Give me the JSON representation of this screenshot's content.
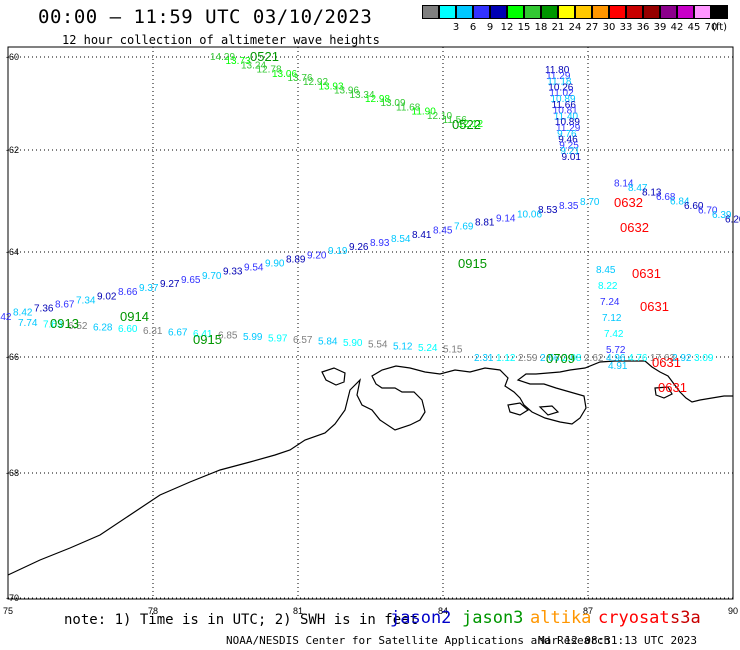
{
  "header": {
    "title": "00:00 – 11:59 UTC 03/10/2023",
    "subtitle": "12 hour collection of altimeter wave heights"
  },
  "color_scale": {
    "unit": "(ft)",
    "bins": [
      {
        "label": "",
        "color": "#7f7f7f"
      },
      {
        "label": "3",
        "color": "#00ffff"
      },
      {
        "label": "6",
        "color": "#00c8ff"
      },
      {
        "label": "9",
        "color": "#3232ff"
      },
      {
        "label": "12",
        "color": "#0000b4"
      },
      {
        "label": "15",
        "color": "#00ff00"
      },
      {
        "label": "18",
        "color": "#32c832"
      },
      {
        "label": "21",
        "color": "#009600"
      },
      {
        "label": "24",
        "color": "#ffff00"
      },
      {
        "label": "27",
        "color": "#ffc800"
      },
      {
        "label": "30",
        "color": "#ff9600"
      },
      {
        "label": "33",
        "color": "#ff0000"
      },
      {
        "label": "36",
        "color": "#c80000"
      },
      {
        "label": "39",
        "color": "#960000"
      },
      {
        "label": "42",
        "color": "#8c008c"
      },
      {
        "label": "45",
        "color": "#c800c8"
      },
      {
        "label": "70",
        "color": "#ff96ff"
      },
      {
        "label": "",
        "color": "#000000"
      }
    ]
  },
  "map": {
    "lon_ticks": [
      "75",
      "78",
      "81",
      "84",
      "87",
      "90"
    ],
    "lat_ticks": [
      "-60",
      "-62",
      "-64",
      "-66",
      "-68",
      "-70"
    ],
    "time_labels": [
      {
        "text": "0521",
        "color": "#009600"
      },
      {
        "text": "0522",
        "color": "#009600"
      },
      {
        "text": "0915",
        "color": "#009600"
      },
      {
        "text": "0914",
        "color": "#009600"
      },
      {
        "text": "0913",
        "color": "#009600"
      },
      {
        "text": "0915",
        "color": "#009600"
      },
      {
        "text": "0709",
        "color": "#009600"
      },
      {
        "text": "0632",
        "color": "#ff0000"
      },
      {
        "text": "0632",
        "color": "#ff0000"
      },
      {
        "text": "0631",
        "color": "#ff0000"
      },
      {
        "text": "0631",
        "color": "#ff0000"
      },
      {
        "text": "0631",
        "color": "#ff0000"
      },
      {
        "text": "0631",
        "color": "#ff0000"
      }
    ],
    "wave_values": {
      "track_a": [
        "14.29",
        "13.73",
        "13.24",
        "12.78",
        "13.06",
        "13.76",
        "12.92",
        "13.93",
        "13.96",
        "13.34",
        "12.98",
        "13.09",
        "11.68",
        "11.90",
        "12.10",
        "11.56",
        "12.12"
      ],
      "track_b": [
        "11.80",
        "11.29",
        "11.18",
        "10.26",
        "11.02",
        "10.89",
        "11.66",
        "10.81",
        "11.40",
        "10.89",
        "11.29",
        "9.76",
        "9.46",
        "9.25",
        "9.21",
        "9.01",
        "8.14",
        "8.47",
        "8.13",
        "6.68",
        "6.84",
        "6.60",
        "6.70",
        "6.39",
        "6.20"
      ],
      "track_c": [
        "8.70",
        "8.35",
        "8.53",
        "10.06",
        "9.14",
        "8.81",
        "7.69",
        "8.45",
        "8.41",
        "8.54",
        "8.93",
        "9.26",
        "9.19",
        "9.20",
        "8.89",
        "9.90",
        "9.54",
        "9.33",
        "9.70",
        "9.65",
        "9.27",
        "9.37",
        "8.66",
        "9.02",
        "7.34",
        "8.67",
        "7.36",
        "8.42",
        "6.42"
      ],
      "track_d": [
        "7.74",
        "7.63",
        "6.52",
        "6.28",
        "6.60",
        "6.31",
        "6.67",
        "6.41",
        "6.85",
        "5.99",
        "5.97",
        "6.57",
        "5.84",
        "5.90",
        "5.54",
        "5.12",
        "5.24",
        "5.15",
        "2.31",
        "1.12",
        "2.59",
        "2.66",
        "2.08",
        "2.62",
        "4.96",
        "4.76",
        "17.63",
        "2.92",
        "3.09"
      ],
      "track_e": [
        "8.45",
        "8.22",
        "7.24",
        "7.12",
        "7.42",
        "5.72",
        "4.91"
      ]
    }
  },
  "note": "note: 1) Time is in UTC; 2) SWH is in feet",
  "legend": [
    {
      "label": "jason2",
      "color": "#0000c8"
    },
    {
      "label": "jason3",
      "color": "#009600"
    },
    {
      "label": "altika",
      "color": "#ff9600"
    },
    {
      "label": "cryosat",
      "color": "#ff0000"
    },
    {
      "label": "s3a",
      "color": "#c80000"
    }
  ],
  "footer": {
    "credit": "NOAA/NESDIS Center for Satellite Applications and Research",
    "timestamp": "Mar 12 08:31:13 UTC 2023"
  }
}
